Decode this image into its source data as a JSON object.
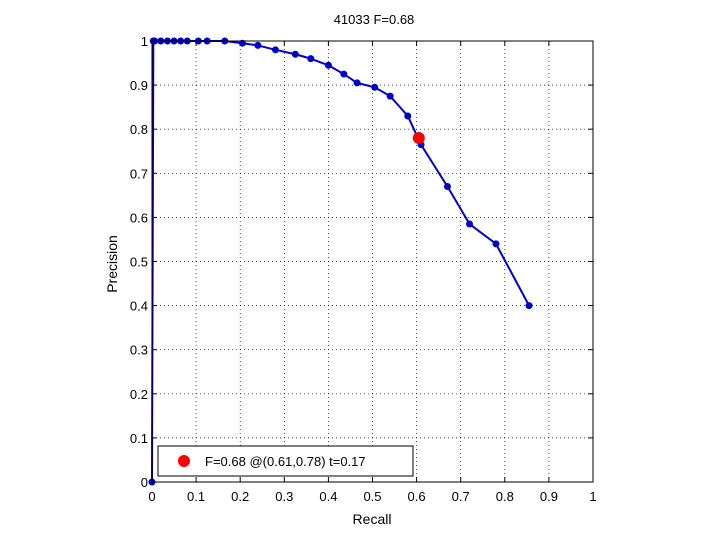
{
  "chart_data": {
    "type": "line",
    "title": "41033 F=0.68",
    "xlabel": "Recall",
    "ylabel": "Precision",
    "xlim": [
      0,
      1
    ],
    "ylim": [
      0,
      1
    ],
    "xticks": [
      0,
      0.1,
      0.2,
      0.3,
      0.4,
      0.5,
      0.6,
      0.7,
      0.8,
      0.9,
      1
    ],
    "yticks": [
      0,
      0.1,
      0.2,
      0.3,
      0.4,
      0.5,
      0.6,
      0.7,
      0.8,
      0.9,
      1
    ],
    "xtick_labels": [
      "0",
      "0.1",
      "0.2",
      "0.3",
      "0.4",
      "0.5",
      "0.6",
      "0.7",
      "0.8",
      "0.9",
      "1"
    ],
    "ytick_labels": [
      "0",
      "0.1",
      "0.2",
      "0.3",
      "0.4",
      "0.5",
      "0.6",
      "0.7",
      "0.8",
      "0.9",
      "1"
    ],
    "grid": true,
    "series": [
      {
        "color": "#0000cc",
        "x": [
          0,
          0.003,
          0.006,
          0.02,
          0.035,
          0.05,
          0.065,
          0.08,
          0.105,
          0.125,
          0.165,
          0.205,
          0.24,
          0.28,
          0.325,
          0.36,
          0.4,
          0.435,
          0.465,
          0.505,
          0.54,
          0.58,
          0.61,
          0.67,
          0.72,
          0.78,
          0.855
        ],
        "y": [
          0,
          1,
          1,
          1,
          1,
          1,
          1,
          1,
          1,
          1,
          1,
          0.995,
          0.99,
          0.98,
          0.97,
          0.96,
          0.945,
          0.925,
          0.905,
          0.895,
          0.875,
          0.83,
          0.765,
          0.67,
          0.585,
          0.54,
          0.4
        ]
      }
    ],
    "highlight": {
      "x": 0.605,
      "y": 0.78,
      "color": "#ff0000"
    },
    "legend": {
      "position": "bottom-left",
      "text": "F=0.68 @(0.61,0.78) t=0.17"
    }
  }
}
